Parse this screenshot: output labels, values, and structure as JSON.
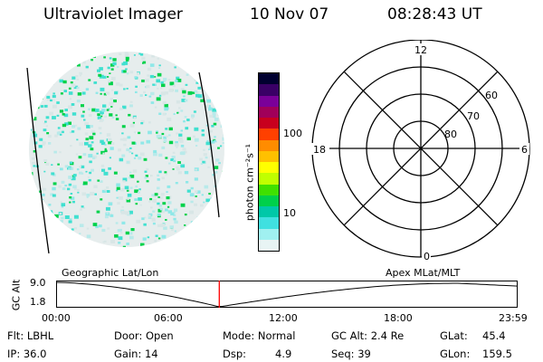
{
  "header": {
    "instrument": "Ultraviolet Imager",
    "date": "10 Nov 07",
    "time": "08:28:43 UT"
  },
  "colorbar": {
    "label": "photon cm⁻²s⁻¹",
    "ticks": [
      "100",
      "10"
    ],
    "colors": [
      "#000030",
      "#3a0066",
      "#7a0099",
      "#a0005a",
      "#c8001e",
      "#ff4000",
      "#ff8c00",
      "#ffc000",
      "#ffff00",
      "#c0ff00",
      "#40e000",
      "#00d04a",
      "#00c8a8",
      "#40e0e0",
      "#a0f0f0",
      "#e8f4f4"
    ]
  },
  "polar_plot": {
    "mlt_labels": [
      "12",
      "18",
      "6",
      "0"
    ],
    "lat_labels": [
      "60",
      "70",
      "80"
    ]
  },
  "timeline": {
    "left_caption": "Geographic Lat/Lon",
    "right_caption": "Apex MLat/MLT",
    "axis_label": "GC Alt",
    "y_max": "9.0",
    "y_min": "1.8",
    "time_ticks": [
      "00:00",
      "06:00",
      "12:00",
      "18:00",
      "23:59"
    ],
    "current_time_fraction": 0.3535,
    "marker_color": "#ff0000"
  },
  "status": {
    "flt": "Flt: LBHL",
    "ip": "IP: 36.0",
    "door": "Door: Open",
    "gain": "Gain: 14",
    "mode": "Mode: Normal",
    "dsp_label": "Dsp:",
    "dsp_value": "4.9",
    "gc_alt": "GC Alt: 2.4 Re",
    "seq": "Seq: 39",
    "glat_label": "GLat:",
    "glat_value": "45.4",
    "glon_label": "GLon:",
    "glon_value": "159.5"
  }
}
